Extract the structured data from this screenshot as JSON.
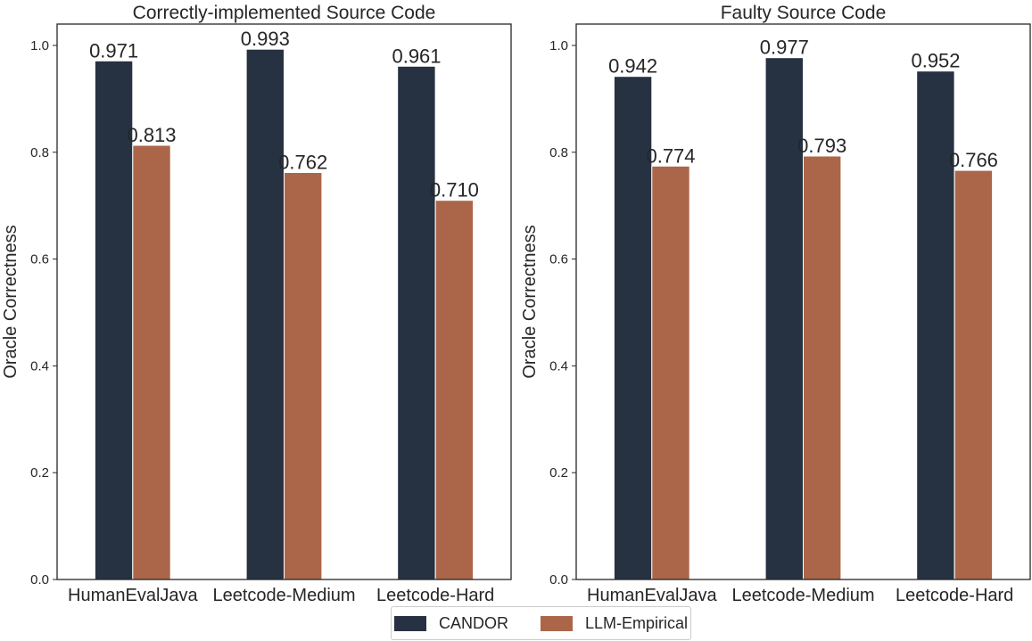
{
  "chart_data": [
    {
      "type": "bar",
      "title": "Correctly-implemented Source Code",
      "xlabel": "",
      "ylabel": "Oracle Correctness",
      "categories": [
        "HumanEvalJava",
        "Leetcode-Medium",
        "Leetcode-Hard"
      ],
      "series": [
        {
          "name": "CANDOR",
          "values": [
            0.971,
            0.993,
            0.961
          ],
          "labels": [
            "0.971",
            "0.993",
            "0.961"
          ]
        },
        {
          "name": "LLM-Empirical",
          "values": [
            0.813,
            0.762,
            0.71
          ],
          "labels": [
            "0.813",
            "0.762",
            "0.710"
          ]
        }
      ],
      "ylim": [
        0,
        1.04
      ],
      "yticks": [
        "0.0",
        "0.2",
        "0.4",
        "0.6",
        "0.8",
        "1.0"
      ],
      "grid": false
    },
    {
      "type": "bar",
      "title": "Faulty Source Code",
      "xlabel": "",
      "ylabel": "Oracle Correctness",
      "categories": [
        "HumanEvalJava",
        "Leetcode-Medium",
        "Leetcode-Hard"
      ],
      "series": [
        {
          "name": "CANDOR",
          "values": [
            0.942,
            0.977,
            0.952
          ],
          "labels": [
            "0.942",
            "0.977",
            "0.952"
          ]
        },
        {
          "name": "LLM-Empirical",
          "values": [
            0.774,
            0.793,
            0.766
          ],
          "labels": [
            "0.774",
            "0.793",
            "0.766"
          ]
        }
      ],
      "ylim": [
        0,
        1.04
      ],
      "yticks": [
        "0.0",
        "0.2",
        "0.4",
        "0.6",
        "0.8",
        "1.0"
      ],
      "grid": false
    }
  ],
  "legend": {
    "placement": "bottom-center",
    "items": [
      {
        "label": "CANDOR",
        "color": "#263241"
      },
      {
        "label": "LLM-Empirical",
        "color": "#ab664a"
      }
    ]
  },
  "colors": {
    "candor": "#263241",
    "llm_empirical": "#ab664a",
    "axis": "#262626"
  }
}
